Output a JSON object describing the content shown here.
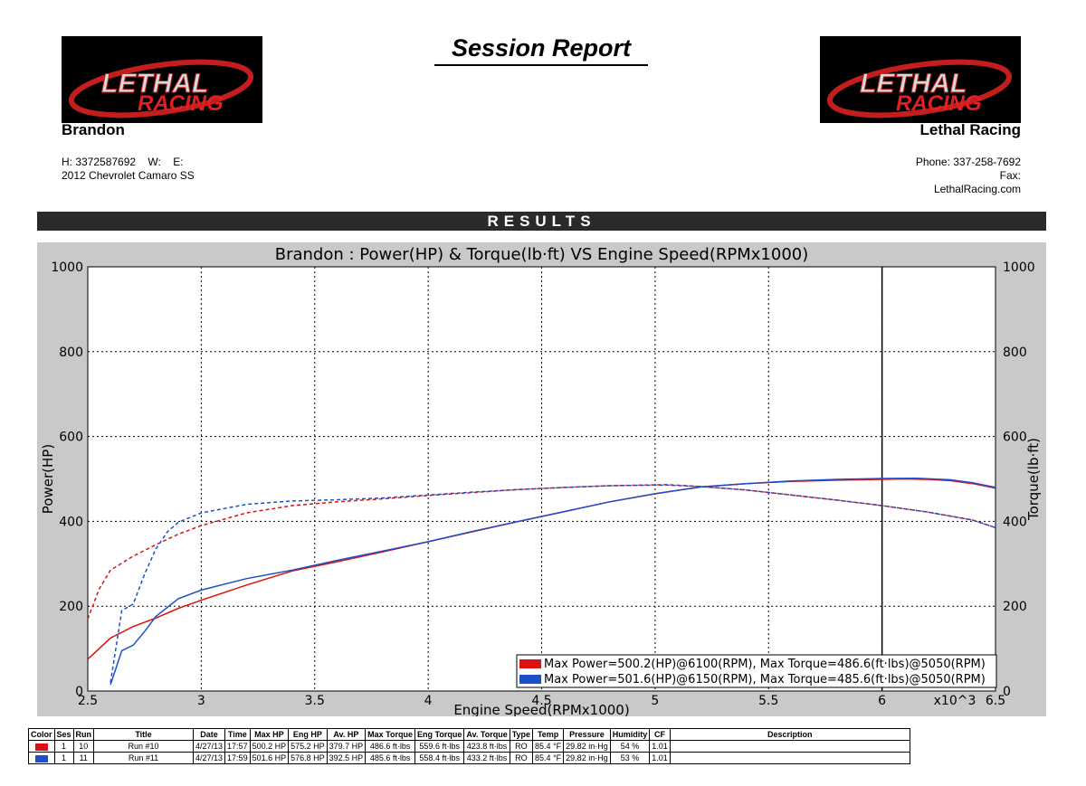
{
  "report": {
    "title": "Session Report",
    "customer": {
      "name": "Brandon",
      "home_phone": "H:  3372587692",
      "work_phone": "W:",
      "email": "E:",
      "vehicle": "2012 Chevrolet Camaro SS"
    },
    "shop": {
      "name": "Lethal Racing",
      "phone": "Phone: 337-258-7692",
      "fax": "Fax:",
      "website": "LethalRacing.com"
    },
    "logo": {
      "line1": "LETHAL",
      "line2": "RACING"
    },
    "results_header": "RESULTS"
  },
  "colors": {
    "run10": "#dd1111",
    "run11": "#1f4fc8",
    "marker": "#000000",
    "panel": "#c9c9c9"
  },
  "chart_data": {
    "type": "line",
    "title": "Brandon : Power(HP) & Torque(lb·ft) VS Engine Speed(RPMx1000)",
    "xlabel": "Engine Speed(RPMx1000)",
    "ylabel_left": "Power(HP)",
    "ylabel_right": "Torque(lb·ft)",
    "xlim": [
      2.5,
      6.5
    ],
    "ylim": [
      0,
      1000
    ],
    "x_ticks": [
      "2.5",
      "3",
      "3.5",
      "4",
      "4.5",
      "5",
      "5.5",
      "6",
      "6.5"
    ],
    "y_ticks": [
      "0",
      "200",
      "400",
      "600",
      "800",
      "1000"
    ],
    "x_multiplier_label": "x10^3",
    "grid": true,
    "marker_x": 6.0,
    "legend_position": "bottom-right",
    "legend": [
      "Max Power=500.2(HP)@6100(RPM), Max Torque=486.6(ft·lbs)@5050(RPM)",
      "Max Power=501.6(HP)@6150(RPM), Max Torque=485.6(ft·lbs)@5050(RPM)"
    ],
    "series": [
      {
        "run": "10",
        "measure": "power",
        "style": "solid",
        "x": [
          2.5,
          2.6,
          2.7,
          2.8,
          2.9,
          3.0,
          3.2,
          3.4,
          3.6,
          3.8,
          4.0,
          4.2,
          4.4,
          4.6,
          4.8,
          5.0,
          5.2,
          5.4,
          5.6,
          5.8,
          6.0,
          6.1,
          6.2,
          6.3,
          6.4,
          6.5
        ],
        "y": [
          75,
          125,
          152,
          172,
          195,
          214,
          250,
          283,
          305,
          328,
          352,
          376,
          400,
          423,
          446,
          465,
          481,
          489,
          494,
          497,
          499,
          500,
          499,
          496,
          489,
          478
        ]
      },
      {
        "run": "10",
        "measure": "torque",
        "style": "dashed",
        "x": [
          2.5,
          2.55,
          2.6,
          2.7,
          2.8,
          2.9,
          3.0,
          3.2,
          3.4,
          3.6,
          3.8,
          4.0,
          4.2,
          4.4,
          4.6,
          4.8,
          5.0,
          5.05,
          5.2,
          5.4,
          5.6,
          5.8,
          6.0,
          6.2,
          6.4,
          6.5
        ],
        "y": [
          170,
          240,
          285,
          318,
          345,
          370,
          390,
          420,
          437,
          446,
          453,
          461,
          468,
          475,
          480,
          484,
          486,
          486.6,
          482,
          474,
          462,
          450,
          437,
          422,
          403,
          385
        ]
      },
      {
        "run": "11",
        "measure": "power",
        "style": "solid",
        "x": [
          2.6,
          2.65,
          2.7,
          2.75,
          2.8,
          2.9,
          3.0,
          3.2,
          3.4,
          3.6,
          3.8,
          4.0,
          4.2,
          4.4,
          4.6,
          4.8,
          5.0,
          5.2,
          5.4,
          5.6,
          5.8,
          6.0,
          6.15,
          6.3,
          6.4,
          6.5
        ],
        "y": [
          15,
          95,
          108,
          140,
          176,
          218,
          238,
          265,
          285,
          308,
          330,
          352,
          377,
          400,
          423,
          446,
          465,
          481,
          489,
          495,
          499,
          501,
          501.6,
          498,
          491,
          480
        ]
      },
      {
        "run": "11",
        "measure": "torque",
        "style": "dashed",
        "x": [
          2.6,
          2.65,
          2.7,
          2.75,
          2.8,
          2.85,
          2.9,
          3.0,
          3.2,
          3.4,
          3.6,
          3.8,
          4.0,
          4.2,
          4.4,
          4.6,
          4.8,
          5.0,
          5.05,
          5.2,
          5.4,
          5.6,
          5.8,
          6.0,
          6.2,
          6.4,
          6.5
        ],
        "y": [
          20,
          190,
          205,
          275,
          335,
          375,
          398,
          420,
          440,
          448,
          451,
          455,
          462,
          469,
          475,
          480,
          484,
          485.2,
          485.6,
          482,
          474,
          462,
          450,
          437,
          422,
          403,
          385
        ]
      }
    ]
  },
  "table": {
    "headers": [
      "Color",
      "Ses",
      "Run",
      "Title",
      "Date",
      "Time",
      "Max HP",
      "Eng HP",
      "Av. HP",
      "Max Torque",
      "Eng Torque",
      "Av. Torque",
      "Type",
      "Temp",
      "Pressure",
      "Humidity",
      "CF",
      "Description"
    ],
    "rows": [
      {
        "color": "run10",
        "cells": [
          "1",
          "10",
          "Run #10",
          "4/27/13",
          "17:57",
          "500.2 HP",
          "575.2 HP",
          "379.7 HP",
          "486.6 ft·lbs",
          "559.6 ft·lbs",
          "423.8 ft·lbs",
          "RO",
          "85.4 °F",
          "29.82 in·Hg",
          "54 %",
          "1.01",
          ""
        ]
      },
      {
        "color": "run11",
        "cells": [
          "1",
          "11",
          "Run #11",
          "4/27/13",
          "17:59",
          "501.6 HP",
          "576.8 HP",
          "392.5 HP",
          "485.6 ft·lbs",
          "558.4 ft·lbs",
          "433.2 ft·lbs",
          "RO",
          "85.4 °F",
          "29.82 in·Hg",
          "53 %",
          "1.01",
          ""
        ]
      }
    ]
  }
}
